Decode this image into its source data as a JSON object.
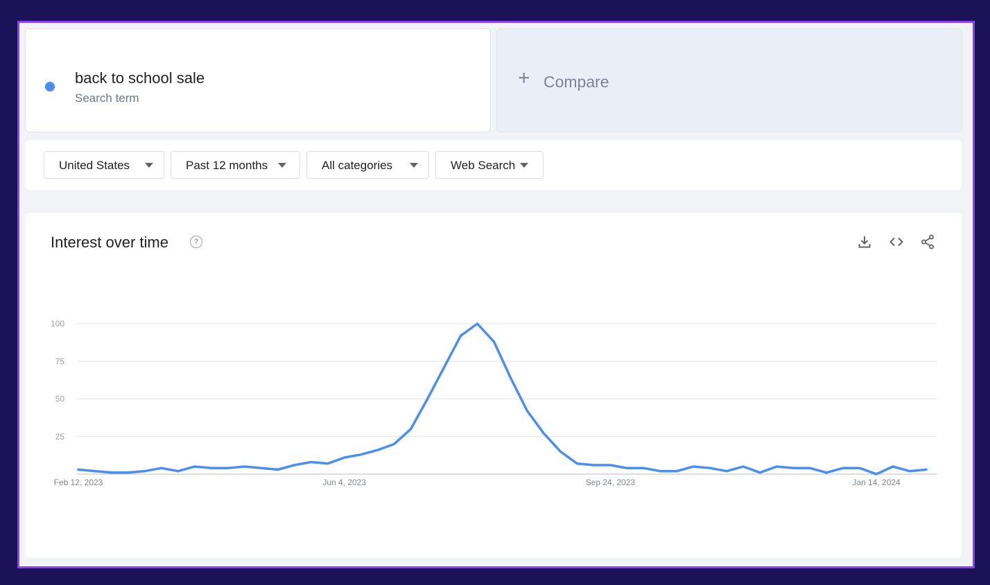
{
  "search_term": {
    "title": "back to school sale",
    "subtitle": "Search term",
    "color": "#4b8ef1"
  },
  "compare": {
    "icon": "plus-icon",
    "label": "Compare"
  },
  "filters": [
    {
      "label": "United States"
    },
    {
      "label": "Past 12 months"
    },
    {
      "label": "All categories"
    },
    {
      "label": "Web Search"
    }
  ],
  "chart_section": {
    "title": "Interest over time",
    "icons": [
      "help-icon",
      "download-icon",
      "embed-code-icon",
      "share-icon"
    ]
  },
  "chart_data": {
    "type": "line",
    "title": "",
    "xlabel": "",
    "ylabel": "",
    "ylim": [
      0,
      100
    ],
    "yticks": [
      25,
      50,
      75,
      100
    ],
    "xtick_labels": [
      {
        "label": "Feb 12, 2023",
        "index": 0
      },
      {
        "label": "Jun 4, 2023",
        "index": 16
      },
      {
        "label": "Sep 24, 2023",
        "index": 32
      },
      {
        "label": "Jan 14, 2024",
        "index": 48
      }
    ],
    "grid": true,
    "series": [
      {
        "color": "#4b8ef1",
        "values": [
          3,
          2,
          1,
          1,
          2,
          4,
          2,
          5,
          4,
          4,
          5,
          4,
          3,
          6,
          8,
          7,
          11,
          13,
          16,
          20,
          30,
          50,
          71,
          92,
          100,
          88,
          64,
          42,
          27,
          15,
          7,
          6,
          6,
          4,
          4,
          2,
          2,
          5,
          4,
          2,
          5,
          1,
          5,
          4,
          4,
          1,
          4,
          4,
          0,
          5,
          2,
          3
        ]
      }
    ]
  }
}
